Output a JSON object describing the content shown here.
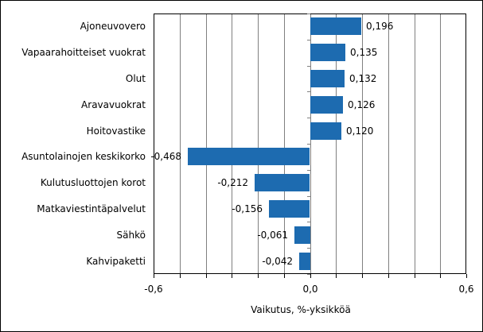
{
  "chart_data": {
    "type": "bar",
    "orientation": "horizontal",
    "categories": [
      "Ajoneuvovero",
      "Vapaarahoitteiset vuokrat",
      "Olut",
      "Aravavuokrat",
      "Hoitovastike",
      "Asuntolainojen keskikorko",
      "Kulutusluottojen korot",
      "Matkaviestintäpalvelut",
      "Sähkö",
      "Kahvipaketti"
    ],
    "values": [
      0.196,
      0.135,
      0.132,
      0.126,
      0.12,
      -0.468,
      -0.212,
      -0.156,
      -0.061,
      -0.042
    ],
    "value_labels": [
      "0,196",
      "0,135",
      "0,132",
      "0,126",
      "0,120",
      "-0,468",
      "-0,212",
      "-0,156",
      "-0,061",
      "-0,042"
    ],
    "title": "",
    "xlabel": "Vaikutus, %-yksikköä",
    "ylabel": "",
    "xlim": [
      -0.6,
      0.6
    ],
    "grid_step": 0.1,
    "grid": true,
    "legend": false,
    "x_ticks": [
      -0.6,
      0.0,
      0.6
    ],
    "x_tick_labels": [
      "-0,6",
      "0,0",
      "0,6"
    ]
  },
  "colors": {
    "bar": "#1d6bb0",
    "grid": "#808080",
    "axis": "#000000",
    "text": "#000000",
    "background": "#ffffff"
  }
}
